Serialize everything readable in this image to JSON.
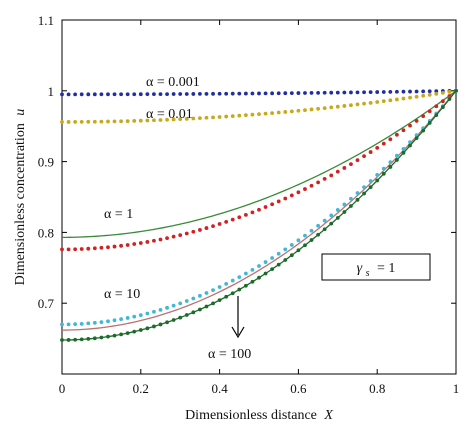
{
  "chart_data": {
    "type": "line",
    "xlabel_text": "Dimensionless distance",
    "xlabel_var": "X",
    "ylabel_text": "Dimensionless concentration",
    "ylabel_var": "u",
    "xlim": [
      0,
      1
    ],
    "ylim": [
      0.6,
      1.1
    ],
    "xticks": [
      "0",
      "0.2",
      "0.4",
      "0.6",
      "0.8",
      "1"
    ],
    "yticks": [
      "0.7",
      "0.8",
      "0.9",
      "1",
      "1.1"
    ],
    "x": [
      0,
      0.05,
      0.1,
      0.15,
      0.2,
      0.25,
      0.3,
      0.35,
      0.4,
      0.45,
      0.5,
      0.55,
      0.6,
      0.65,
      0.7,
      0.75,
      0.8,
      0.85,
      0.9,
      0.95,
      1
    ],
    "series": [
      {
        "alpha_label": "α = 0.001",
        "color": "#1f2f9f",
        "style": "dots",
        "u0": 0.995
      },
      {
        "alpha_label": "α = 0.01",
        "color": "#c9a81a",
        "style": "dots",
        "u0": 0.956
      },
      {
        "alpha_label": "",
        "color": "#3a8a3a",
        "style": "line",
        "u0": 0.793,
        "note": "α = 1 line"
      },
      {
        "alpha_label": "α = 1",
        "color": "#d42020",
        "style": "dots",
        "u0": 0.776
      },
      {
        "alpha_label": "",
        "color": "#c07070",
        "style": "line",
        "u0": 0.662,
        "note": "α = 10 line"
      },
      {
        "alpha_label": "α = 10",
        "color": "#3fb8d8",
        "style": "dots",
        "u0": 0.67
      },
      {
        "alpha_label": "α = 100",
        "color": "#1d6b2a",
        "style": "dots+line",
        "u0": 0.648
      }
    ],
    "annotations": {
      "a0001": "α = 0.001",
      "a001": "α = 0.01",
      "a1": "α = 1",
      "a10": "α = 10",
      "a100": "α = 100",
      "gamma_box_sym": "γ",
      "gamma_box_sub": "s",
      "gamma_box_eq": "= 1"
    },
    "grid": false,
    "legend": "none"
  }
}
